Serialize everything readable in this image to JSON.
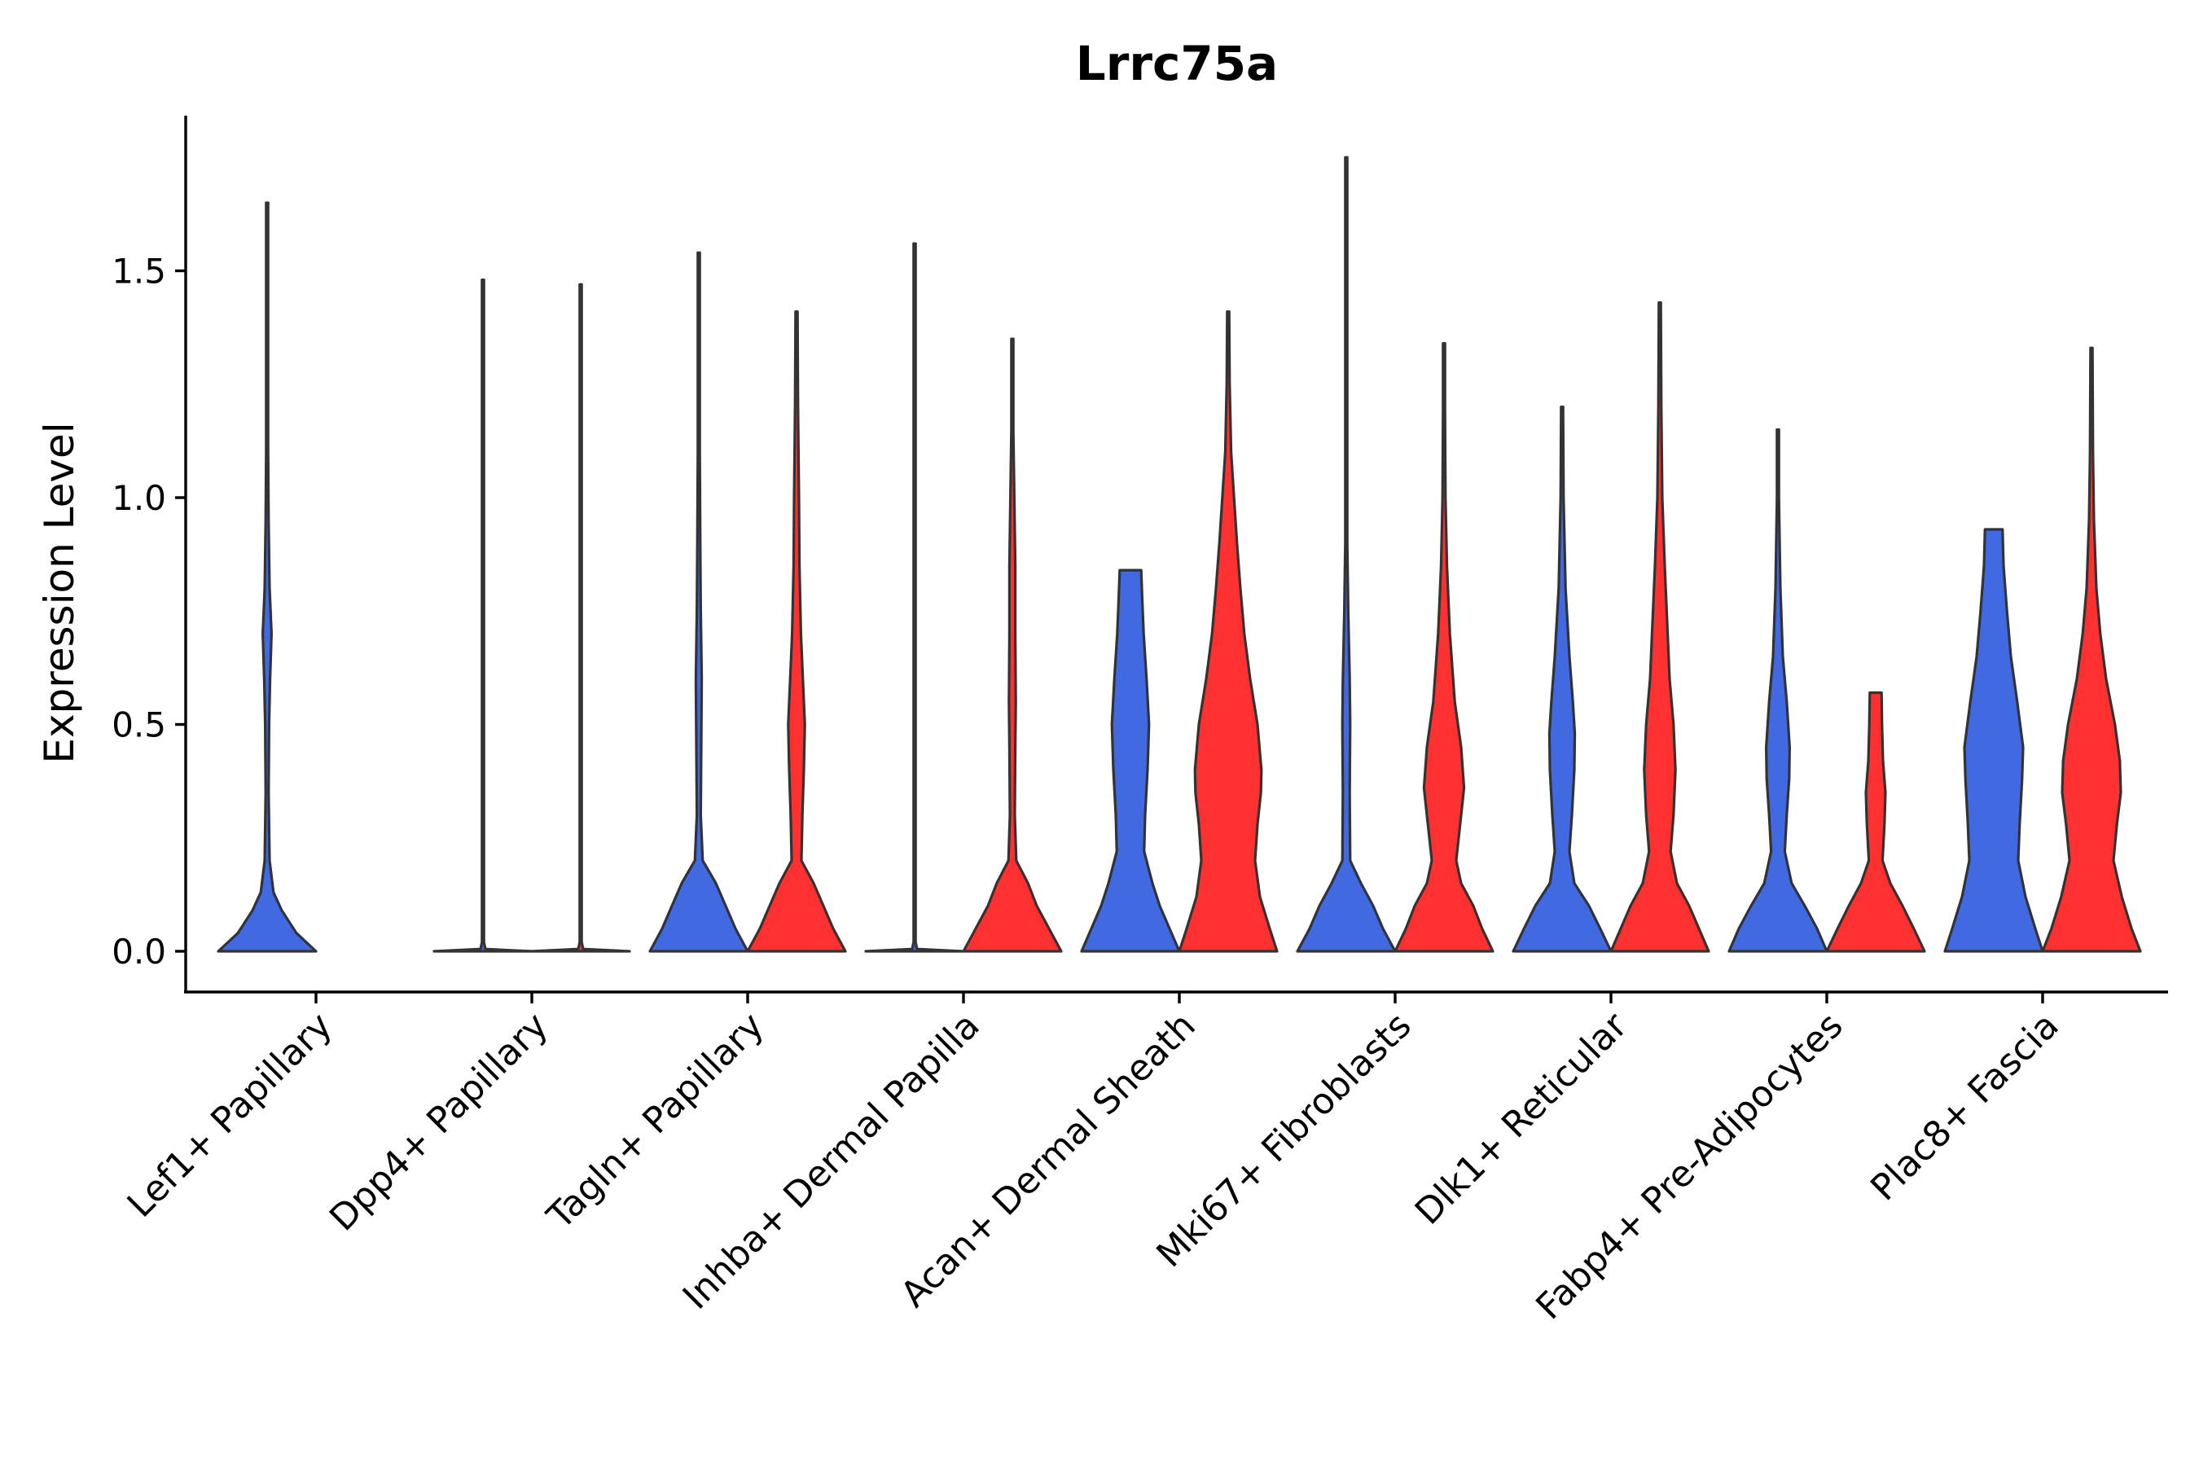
{
  "chart_data": {
    "type": "violin",
    "title": "Lrrc75a",
    "xlabel": "",
    "ylabel": "Expression Level",
    "ylim": [
      -0.09,
      1.84
    ],
    "yticks": [
      0.0,
      0.5,
      1.0,
      1.5
    ],
    "ytick_labels": [
      "0.0",
      "0.5",
      "1.0",
      "1.5"
    ],
    "grid": false,
    "legend": "none",
    "colors": {
      "blue": "#4169E1",
      "red": "#FF3030",
      "outline": "#333333"
    },
    "categories": [
      "Lef1+ Papillary",
      "Dpp4+ Papillary",
      "Tagln+ Papillary",
      "Inhba+ Dermal Papilla",
      "Acan+ Dermal Sheath",
      "Mki67+ Fibroblasts",
      "Dlk1+ Reticular",
      "Fabp4+ Pre-Adipocytes",
      "Plac8+ Fascia"
    ],
    "violins": [
      {
        "category": "Lef1+ Papillary",
        "group": "blue",
        "max": 1.65,
        "profile": [
          [
            0,
            1.0
          ],
          [
            0.04,
            0.6
          ],
          [
            0.09,
            0.3
          ],
          [
            0.13,
            0.13
          ],
          [
            0.2,
            0.05
          ],
          [
            0.35,
            0.03
          ],
          [
            0.5,
            0.04
          ],
          [
            0.6,
            0.06
          ],
          [
            0.7,
            0.09
          ],
          [
            0.8,
            0.05
          ],
          [
            0.95,
            0.03
          ],
          [
            1.1,
            0.02
          ],
          [
            1.3,
            0.015
          ],
          [
            1.5,
            0.012
          ],
          [
            1.65,
            0.01
          ]
        ]
      },
      {
        "category": "Dpp4+ Papillary",
        "group": "blue",
        "max": 1.48,
        "profile": [
          [
            0,
            1.0
          ],
          [
            0.005,
            0.05
          ],
          [
            0.02,
            0.012
          ],
          [
            0.5,
            0.01
          ],
          [
            1.0,
            0.01
          ],
          [
            1.48,
            0.01
          ]
        ]
      },
      {
        "category": "Dpp4+ Papillary",
        "group": "red",
        "max": 1.47,
        "profile": [
          [
            0,
            1.0
          ],
          [
            0.005,
            0.05
          ],
          [
            0.02,
            0.012
          ],
          [
            0.5,
            0.01
          ],
          [
            1.0,
            0.01
          ],
          [
            1.47,
            0.01
          ]
        ]
      },
      {
        "category": "Tagln+ Papillary",
        "group": "blue",
        "max": 1.54,
        "profile": [
          [
            0,
            1.0
          ],
          [
            0.05,
            0.75
          ],
          [
            0.1,
            0.55
          ],
          [
            0.15,
            0.35
          ],
          [
            0.2,
            0.08
          ],
          [
            0.3,
            0.04
          ],
          [
            0.45,
            0.05
          ],
          [
            0.6,
            0.06
          ],
          [
            0.75,
            0.04
          ],
          [
            0.9,
            0.03
          ],
          [
            1.1,
            0.02
          ],
          [
            1.3,
            0.015
          ],
          [
            1.54,
            0.01
          ]
        ]
      },
      {
        "category": "Tagln+ Papillary",
        "group": "red",
        "max": 1.41,
        "profile": [
          [
            0,
            1.0
          ],
          [
            0.05,
            0.75
          ],
          [
            0.1,
            0.55
          ],
          [
            0.15,
            0.35
          ],
          [
            0.2,
            0.1
          ],
          [
            0.3,
            0.12
          ],
          [
            0.4,
            0.15
          ],
          [
            0.5,
            0.17
          ],
          [
            0.6,
            0.13
          ],
          [
            0.7,
            0.09
          ],
          [
            0.85,
            0.06
          ],
          [
            1.0,
            0.05
          ],
          [
            1.2,
            0.03
          ],
          [
            1.41,
            0.01
          ]
        ]
      },
      {
        "category": "Inhba+ Dermal Papilla",
        "group": "blue",
        "max": 1.56,
        "profile": [
          [
            0,
            1.0
          ],
          [
            0.005,
            0.05
          ],
          [
            0.02,
            0.012
          ],
          [
            0.5,
            0.01
          ],
          [
            1.0,
            0.01
          ],
          [
            1.56,
            0.01
          ]
        ]
      },
      {
        "category": "Inhba+ Dermal Papilla",
        "group": "red",
        "max": 1.35,
        "profile": [
          [
            0,
            1.0
          ],
          [
            0.05,
            0.75
          ],
          [
            0.1,
            0.5
          ],
          [
            0.15,
            0.32
          ],
          [
            0.2,
            0.08
          ],
          [
            0.3,
            0.05
          ],
          [
            0.45,
            0.06
          ],
          [
            0.55,
            0.07
          ],
          [
            0.7,
            0.06
          ],
          [
            0.85,
            0.06
          ],
          [
            1.0,
            0.04
          ],
          [
            1.15,
            0.02
          ],
          [
            1.35,
            0.01
          ]
        ]
      },
      {
        "category": "Acan+ Dermal Sheath",
        "group": "blue",
        "max": 0.84,
        "profile": [
          [
            0,
            1.0
          ],
          [
            0.05,
            0.8
          ],
          [
            0.1,
            0.6
          ],
          [
            0.15,
            0.45
          ],
          [
            0.22,
            0.28
          ],
          [
            0.3,
            0.3
          ],
          [
            0.4,
            0.35
          ],
          [
            0.5,
            0.38
          ],
          [
            0.6,
            0.33
          ],
          [
            0.7,
            0.27
          ],
          [
            0.78,
            0.24
          ],
          [
            0.84,
            0.22
          ]
        ]
      },
      {
        "category": "Acan+ Dermal Sheath",
        "group": "red",
        "max": 1.41,
        "profile": [
          [
            0,
            1.0
          ],
          [
            0.05,
            0.85
          ],
          [
            0.12,
            0.65
          ],
          [
            0.2,
            0.55
          ],
          [
            0.28,
            0.6
          ],
          [
            0.35,
            0.67
          ],
          [
            0.4,
            0.68
          ],
          [
            0.5,
            0.6
          ],
          [
            0.6,
            0.45
          ],
          [
            0.7,
            0.33
          ],
          [
            0.8,
            0.25
          ],
          [
            0.9,
            0.18
          ],
          [
            1.0,
            0.12
          ],
          [
            1.1,
            0.06
          ],
          [
            1.25,
            0.03
          ],
          [
            1.41,
            0.01
          ]
        ]
      },
      {
        "category": "Mki67+ Fibroblasts",
        "group": "blue",
        "max": 1.75,
        "profile": [
          [
            0,
            1.0
          ],
          [
            0.05,
            0.75
          ],
          [
            0.1,
            0.55
          ],
          [
            0.15,
            0.3
          ],
          [
            0.2,
            0.08
          ],
          [
            0.35,
            0.07
          ],
          [
            0.5,
            0.08
          ],
          [
            0.6,
            0.07
          ],
          [
            0.75,
            0.04
          ],
          [
            0.9,
            0.02
          ],
          [
            1.2,
            0.015
          ],
          [
            1.5,
            0.01
          ],
          [
            1.75,
            0.01
          ]
        ]
      },
      {
        "category": "Mki67+ Fibroblasts",
        "group": "red",
        "max": 1.34,
        "profile": [
          [
            0,
            1.0
          ],
          [
            0.05,
            0.78
          ],
          [
            0.1,
            0.6
          ],
          [
            0.15,
            0.35
          ],
          [
            0.2,
            0.25
          ],
          [
            0.28,
            0.33
          ],
          [
            0.36,
            0.41
          ],
          [
            0.45,
            0.35
          ],
          [
            0.55,
            0.22
          ],
          [
            0.7,
            0.12
          ],
          [
            0.85,
            0.06
          ],
          [
            1.0,
            0.03
          ],
          [
            1.2,
            0.015
          ],
          [
            1.34,
            0.01
          ]
        ]
      },
      {
        "category": "Dlk1+ Reticular",
        "group": "blue",
        "max": 1.2,
        "profile": [
          [
            0,
            1.0
          ],
          [
            0.05,
            0.78
          ],
          [
            0.1,
            0.55
          ],
          [
            0.15,
            0.25
          ],
          [
            0.22,
            0.15
          ],
          [
            0.3,
            0.2
          ],
          [
            0.4,
            0.25
          ],
          [
            0.48,
            0.26
          ],
          [
            0.55,
            0.22
          ],
          [
            0.65,
            0.15
          ],
          [
            0.8,
            0.07
          ],
          [
            1.0,
            0.03
          ],
          [
            1.2,
            0.01
          ]
        ]
      },
      {
        "category": "Dlk1+ Reticular",
        "group": "red",
        "max": 1.43,
        "profile": [
          [
            0,
            1.0
          ],
          [
            0.05,
            0.8
          ],
          [
            0.1,
            0.6
          ],
          [
            0.15,
            0.35
          ],
          [
            0.22,
            0.22
          ],
          [
            0.3,
            0.28
          ],
          [
            0.4,
            0.32
          ],
          [
            0.5,
            0.28
          ],
          [
            0.6,
            0.2
          ],
          [
            0.75,
            0.14
          ],
          [
            0.85,
            0.1
          ],
          [
            1.0,
            0.05
          ],
          [
            1.2,
            0.03
          ],
          [
            1.43,
            0.01
          ]
        ]
      },
      {
        "category": "Fabp4+ Pre-Adipocytes",
        "group": "blue",
        "max": 1.15,
        "profile": [
          [
            0,
            1.0
          ],
          [
            0.05,
            0.8
          ],
          [
            0.1,
            0.55
          ],
          [
            0.15,
            0.28
          ],
          [
            0.22,
            0.14
          ],
          [
            0.3,
            0.18
          ],
          [
            0.38,
            0.23
          ],
          [
            0.45,
            0.24
          ],
          [
            0.55,
            0.18
          ],
          [
            0.65,
            0.1
          ],
          [
            0.8,
            0.05
          ],
          [
            1.0,
            0.02
          ],
          [
            1.15,
            0.01
          ]
        ]
      },
      {
        "category": "Fabp4+ Pre-Adipocytes",
        "group": "red",
        "max": 0.57,
        "profile": [
          [
            0,
            1.0
          ],
          [
            0.05,
            0.78
          ],
          [
            0.1,
            0.55
          ],
          [
            0.15,
            0.3
          ],
          [
            0.2,
            0.14
          ],
          [
            0.28,
            0.18
          ],
          [
            0.35,
            0.2
          ],
          [
            0.42,
            0.15
          ],
          [
            0.5,
            0.13
          ],
          [
            0.57,
            0.12
          ]
        ]
      },
      {
        "category": "Plac8+ Fascia",
        "group": "blue",
        "max": 0.93,
        "profile": [
          [
            0,
            1.0
          ],
          [
            0.05,
            0.85
          ],
          [
            0.12,
            0.65
          ],
          [
            0.2,
            0.5
          ],
          [
            0.28,
            0.53
          ],
          [
            0.38,
            0.58
          ],
          [
            0.45,
            0.6
          ],
          [
            0.55,
            0.48
          ],
          [
            0.65,
            0.35
          ],
          [
            0.75,
            0.27
          ],
          [
            0.85,
            0.2
          ],
          [
            0.93,
            0.18
          ]
        ]
      },
      {
        "category": "Plac8+ Fascia",
        "group": "red",
        "max": 1.33,
        "profile": [
          [
            0,
            1.0
          ],
          [
            0.05,
            0.82
          ],
          [
            0.12,
            0.62
          ],
          [
            0.2,
            0.45
          ],
          [
            0.28,
            0.52
          ],
          [
            0.35,
            0.6
          ],
          [
            0.42,
            0.58
          ],
          [
            0.5,
            0.48
          ],
          [
            0.6,
            0.3
          ],
          [
            0.7,
            0.18
          ],
          [
            0.8,
            0.1
          ],
          [
            0.95,
            0.05
          ],
          [
            1.1,
            0.03
          ],
          [
            1.33,
            0.01
          ]
        ]
      }
    ]
  }
}
